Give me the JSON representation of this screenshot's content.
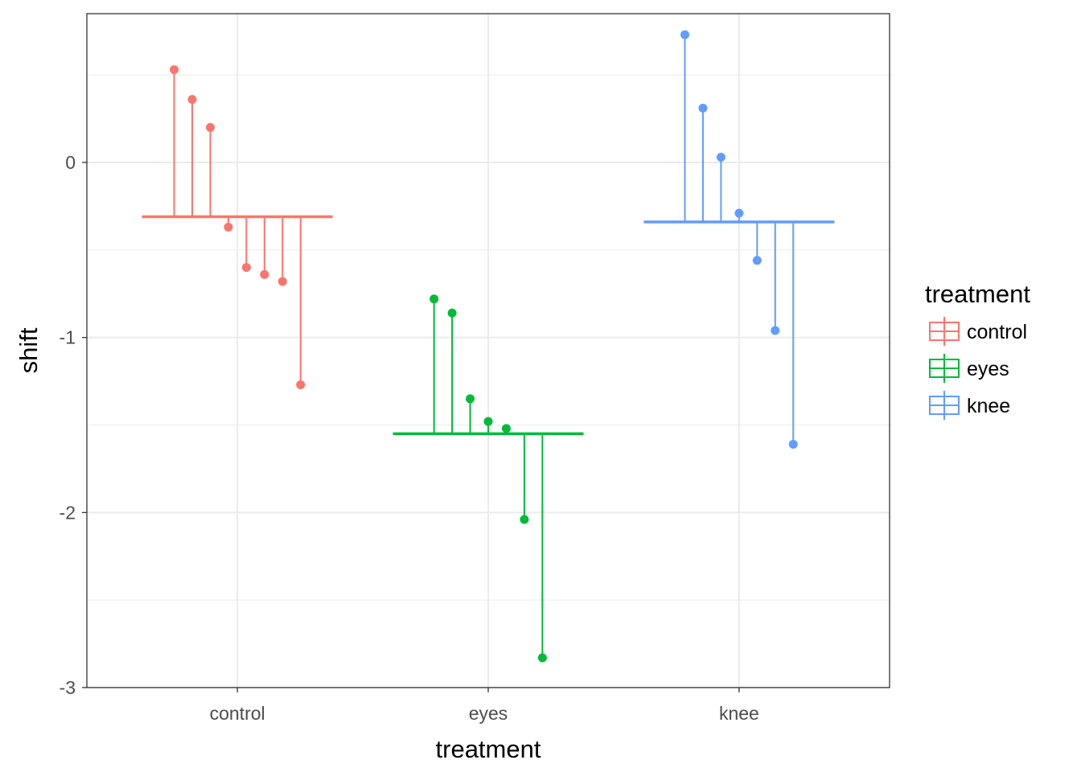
{
  "chart_data": {
    "type": "scatter",
    "title": "",
    "xlabel": "treatment",
    "ylabel": "shift",
    "categories": [
      "control",
      "eyes",
      "knee"
    ],
    "ylim": [
      -3,
      0.85
    ],
    "y_ticks": [
      0,
      -1,
      -2,
      -3
    ],
    "y_tick_labels": [
      "0",
      "-1",
      "-2",
      "-3"
    ],
    "grid": true,
    "legend": {
      "title": "treatment",
      "position": "right",
      "entries": [
        "control",
        "eyes",
        "knee"
      ]
    },
    "colors": {
      "control": "#F8766D",
      "eyes": "#00BA38",
      "knee": "#619CFF"
    },
    "series": [
      {
        "name": "control",
        "category": "control",
        "mean": -0.31,
        "values": [
          0.53,
          0.36,
          0.2,
          -0.37,
          -0.6,
          -0.64,
          -0.68,
          -1.27
        ]
      },
      {
        "name": "eyes",
        "category": "eyes",
        "mean": -1.55,
        "values": [
          -0.78,
          -0.86,
          -1.35,
          -1.48,
          -1.52,
          -2.04,
          -2.83
        ]
      },
      {
        "name": "knee",
        "category": "knee",
        "mean": -0.34,
        "values": [
          0.73,
          0.31,
          0.03,
          -0.29,
          -0.56,
          -0.96,
          -1.61
        ]
      }
    ]
  }
}
